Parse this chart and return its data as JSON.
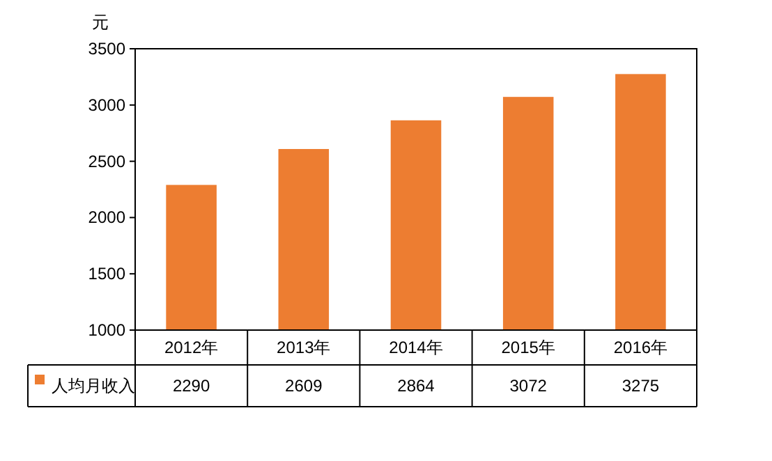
{
  "chart_data": {
    "type": "bar",
    "ylabel": "元",
    "categories": [
      "2012年",
      "2013年",
      "2014年",
      "2015年",
      "2016年"
    ],
    "series": [
      {
        "name": "人均月收入",
        "color": "#ed7d31",
        "values": [
          2290,
          2609,
          2864,
          3072,
          3275
        ]
      }
    ],
    "ylim": [
      1000,
      3500
    ],
    "yticks": [
      1000,
      1500,
      2000,
      2500,
      3000,
      3500
    ],
    "data_labels": true,
    "legend": "bottom left"
  }
}
